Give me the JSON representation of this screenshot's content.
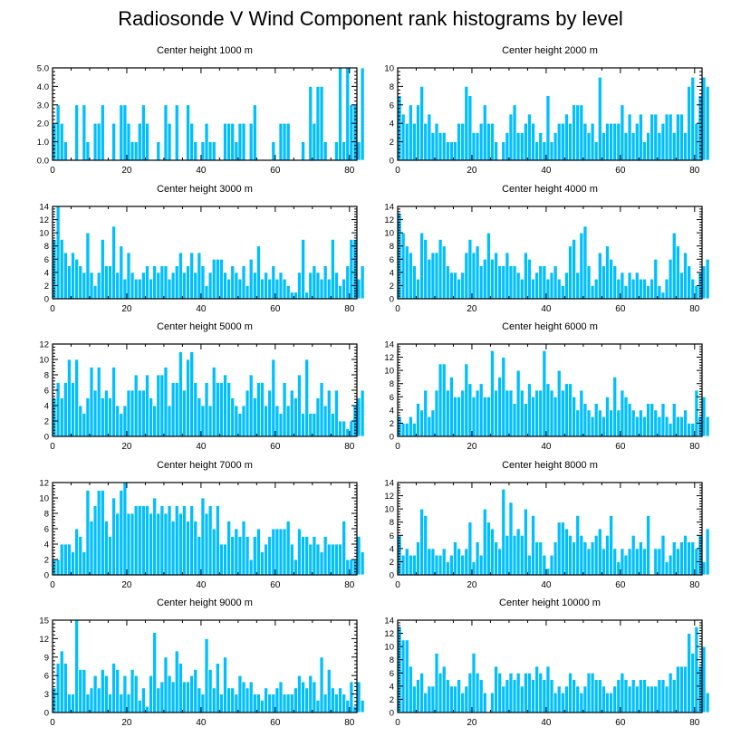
{
  "title": "Radiosonde V Wind Component rank histograms by level",
  "colors": {
    "bar": "#00BFFF",
    "bar_edge": "#ffffff",
    "axis": "#000000",
    "background": "#ffffff"
  },
  "chart_data": [
    {
      "type": "bar",
      "title": "Center height 1000 m",
      "xlim": [
        0,
        82
      ],
      "xticks": [
        0,
        20,
        40,
        60,
        80
      ],
      "ylim": [
        0,
        5
      ],
      "yticks": [
        0,
        1,
        2,
        3,
        4,
        5
      ],
      "ytick_labels": [
        "0.0",
        "1.0",
        "2.0",
        "3.0",
        "4.0",
        "5.0"
      ],
      "values": [
        2,
        3,
        2,
        1,
        0,
        0,
        3,
        0,
        3,
        1,
        0,
        2,
        2,
        3,
        0,
        0,
        2,
        0,
        3,
        3,
        2,
        1,
        1,
        2,
        3,
        2,
        0,
        0,
        1,
        0,
        3,
        2,
        0,
        3,
        0,
        0,
        3,
        2,
        1,
        0,
        1,
        2,
        1,
        1,
        0,
        0,
        2,
        2,
        2,
        1,
        2,
        2,
        0,
        2,
        3,
        0,
        0,
        0,
        0,
        1,
        0,
        2,
        2,
        2,
        0,
        0,
        0,
        1,
        0,
        4,
        2,
        4,
        4,
        1,
        0,
        0,
        1,
        5,
        1,
        5,
        3,
        3,
        1,
        5
      ]
    },
    {
      "type": "bar",
      "title": "Center height 2000 m",
      "xlim": [
        0,
        82
      ],
      "xticks": [
        0,
        20,
        40,
        60,
        80
      ],
      "ylim": [
        0,
        10
      ],
      "yticks": [
        0,
        2,
        4,
        6,
        8,
        10
      ],
      "ytick_labels": [
        "0",
        "2",
        "4",
        "6",
        "8",
        "10"
      ],
      "values": [
        7,
        5,
        4,
        6,
        4,
        6,
        8,
        4,
        5,
        3,
        4,
        3,
        3,
        2,
        2,
        2,
        4,
        4,
        8,
        7,
        3,
        3,
        4,
        6,
        4,
        4,
        2,
        0,
        2,
        3,
        5,
        6,
        3,
        3,
        4,
        5,
        4,
        2,
        3,
        2,
        7,
        2,
        3,
        4,
        4,
        5,
        4,
        6,
        6,
        6,
        4,
        3,
        4,
        2,
        9,
        3,
        4,
        4,
        4,
        4,
        6,
        3,
        5,
        3,
        4,
        5,
        2,
        3,
        5,
        5,
        3,
        4,
        5,
        5,
        3,
        5,
        5,
        3,
        8,
        9,
        4,
        7,
        9,
        8
      ]
    },
    {
      "type": "bar",
      "title": "Center height 3000 m",
      "xlim": [
        0,
        82
      ],
      "xticks": [
        0,
        20,
        40,
        60,
        80
      ],
      "ylim": [
        0,
        14
      ],
      "yticks": [
        0,
        2,
        4,
        6,
        8,
        10,
        12,
        14
      ],
      "ytick_labels": [
        "0",
        "2",
        "4",
        "6",
        "8",
        "10",
        "12",
        "14"
      ],
      "values": [
        9,
        14,
        9,
        7,
        5,
        7,
        6,
        5,
        4,
        10,
        4,
        2,
        4,
        9,
        5,
        5,
        11,
        4,
        8,
        3,
        7,
        4,
        3,
        3,
        4,
        5,
        3,
        5,
        4,
        5,
        5,
        3,
        4,
        5,
        7,
        4,
        5,
        7,
        4,
        7,
        5,
        2,
        4,
        6,
        6,
        6,
        4,
        3,
        5,
        4,
        3,
        5,
        2,
        6,
        4,
        8,
        3,
        4,
        3,
        5,
        3,
        4,
        3,
        2,
        1,
        1,
        4,
        9,
        1,
        4,
        5,
        4,
        3,
        5,
        3,
        9,
        4,
        2,
        3,
        5,
        9,
        9,
        3,
        5
      ]
    },
    {
      "type": "bar",
      "title": "Center height 4000 m",
      "xlim": [
        0,
        82
      ],
      "xticks": [
        0,
        20,
        40,
        60,
        80
      ],
      "ylim": [
        0,
        14
      ],
      "yticks": [
        0,
        2,
        4,
        6,
        8,
        10,
        12,
        14
      ],
      "ytick_labels": [
        "0",
        "2",
        "4",
        "6",
        "8",
        "10",
        "12",
        "14"
      ],
      "values": [
        13,
        10,
        8,
        7,
        5,
        3,
        10,
        9,
        6,
        7,
        7,
        9,
        8,
        5,
        4,
        4,
        3,
        4,
        7,
        9,
        7,
        8,
        5,
        6,
        10,
        6,
        7,
        5,
        5,
        7,
        5,
        5,
        4,
        3,
        7,
        6,
        3,
        4,
        5,
        5,
        3,
        4,
        5,
        3,
        2,
        4,
        8,
        9,
        4,
        10,
        11,
        5,
        2,
        3,
        7,
        5,
        8,
        6,
        5,
        3,
        4,
        2,
        4,
        3,
        4,
        3,
        3,
        2,
        3,
        6,
        2,
        1,
        3,
        6,
        10,
        8,
        4,
        7,
        5,
        3,
        2,
        4,
        5,
        6
      ]
    },
    {
      "type": "bar",
      "title": "Center height 5000 m",
      "xlim": [
        0,
        82
      ],
      "xticks": [
        0,
        20,
        40,
        60,
        80
      ],
      "ylim": [
        0,
        12
      ],
      "yticks": [
        0,
        2,
        4,
        6,
        8,
        10,
        12
      ],
      "ytick_labels": [
        "0",
        "2",
        "4",
        "6",
        "8",
        "10",
        "12"
      ],
      "values": [
        5,
        7,
        5,
        7,
        10,
        7,
        10,
        4,
        3,
        5,
        9,
        6,
        9,
        5,
        6,
        5,
        9,
        4,
        3,
        4,
        6,
        6,
        8,
        6,
        6,
        8,
        5,
        4,
        8,
        8,
        9,
        4,
        7,
        7,
        11,
        6,
        10,
        11,
        7,
        5,
        4,
        7,
        4,
        9,
        7,
        7,
        8,
        7,
        5,
        4,
        3,
        4,
        6,
        8,
        5,
        7,
        7,
        4,
        6,
        10,
        4,
        3,
        7,
        4,
        6,
        5,
        8,
        3,
        10,
        3,
        3,
        5,
        7,
        4,
        6,
        3,
        6,
        2,
        2,
        1,
        2,
        4,
        5,
        6
      ]
    },
    {
      "type": "bar",
      "title": "Center height 6000 m",
      "xlim": [
        0,
        82
      ],
      "xticks": [
        0,
        20,
        40,
        60,
        80
      ],
      "ylim": [
        0,
        14
      ],
      "yticks": [
        0,
        2,
        4,
        6,
        8,
        10,
        12,
        14
      ],
      "ytick_labels": [
        "0",
        "2",
        "4",
        "6",
        "8",
        "10",
        "12",
        "14"
      ],
      "values": [
        3,
        2,
        2,
        3,
        2,
        5,
        4,
        7,
        3,
        4,
        7,
        11,
        11,
        7,
        9,
        6,
        6,
        7,
        11,
        8,
        6,
        7,
        8,
        6,
        6,
        13,
        7,
        9,
        12,
        7,
        7,
        5,
        10,
        7,
        5,
        8,
        6,
        7,
        7,
        13,
        8,
        7,
        6,
        10,
        7,
        8,
        8,
        6,
        4,
        7,
        5,
        4,
        3,
        5,
        4,
        3,
        6,
        4,
        9,
        4,
        7,
        6,
        5,
        4,
        3,
        4,
        3,
        5,
        5,
        4,
        3,
        5,
        3,
        2,
        5,
        3,
        3,
        4,
        2,
        2,
        7,
        3,
        6,
        3
      ]
    },
    {
      "type": "bar",
      "title": "Center height 7000 m",
      "xlim": [
        0,
        82
      ],
      "xticks": [
        0,
        20,
        40,
        60,
        80
      ],
      "ylim": [
        0,
        12
      ],
      "yticks": [
        0,
        2,
        4,
        6,
        8,
        10,
        12
      ],
      "ytick_labels": [
        "0",
        "2",
        "4",
        "6",
        "8",
        "10",
        "12"
      ],
      "values": [
        2,
        2,
        4,
        4,
        4,
        3,
        6,
        5,
        3,
        11,
        7,
        9,
        11,
        11,
        7,
        5,
        10,
        8,
        11,
        12,
        8,
        8,
        9,
        9,
        9,
        9,
        8,
        10,
        8,
        9,
        8,
        9,
        7,
        9,
        8,
        9,
        7,
        9,
        7,
        5,
        10,
        8,
        9,
        6,
        9,
        4,
        4,
        7,
        5,
        6,
        5,
        7,
        5,
        2,
        5,
        6,
        3,
        4,
        5,
        6,
        6,
        6,
        6,
        7,
        4,
        2,
        6,
        5,
        5,
        4,
        5,
        4,
        3,
        5,
        4,
        4,
        4,
        4,
        7,
        2,
        2,
        2,
        5,
        3
      ]
    },
    {
      "type": "bar",
      "title": "Center height 8000 m",
      "xlim": [
        0,
        82
      ],
      "xticks": [
        0,
        20,
        40,
        60,
        80
      ],
      "ylim": [
        0,
        14
      ],
      "yticks": [
        0,
        2,
        4,
        6,
        8,
        10,
        12,
        14
      ],
      "ytick_labels": [
        "0",
        "2",
        "4",
        "6",
        "8",
        "10",
        "12",
        "14"
      ],
      "values": [
        6,
        3,
        4,
        3,
        3,
        5,
        10,
        9,
        4,
        4,
        3,
        3,
        4,
        2,
        3,
        5,
        4,
        3,
        4,
        8,
        2,
        5,
        3,
        10,
        8,
        7,
        5,
        4,
        13,
        6,
        11,
        6,
        7,
        6,
        10,
        3,
        9,
        5,
        5,
        3,
        1,
        3,
        5,
        8,
        8,
        7,
        6,
        5,
        9,
        6,
        5,
        4,
        5,
        6,
        7,
        4,
        6,
        9,
        4,
        2,
        4,
        3,
        4,
        6,
        4,
        5,
        4,
        9,
        0,
        4,
        4,
        6,
        2,
        3,
        5,
        4,
        5,
        6,
        5,
        5,
        4,
        6,
        2,
        7
      ]
    },
    {
      "type": "bar",
      "title": "Center height 9000 m",
      "xlim": [
        0,
        82
      ],
      "xticks": [
        0,
        20,
        40,
        60,
        80
      ],
      "ylim": [
        0,
        15
      ],
      "yticks": [
        0,
        3,
        6,
        9,
        12,
        15
      ],
      "ytick_labels": [
        "0",
        "3",
        "6",
        "9",
        "12",
        "15"
      ],
      "values": [
        4,
        8,
        10,
        8,
        3,
        3,
        15,
        7,
        7,
        3,
        4,
        6,
        4,
        7,
        6,
        3,
        8,
        7,
        3,
        6,
        3,
        7,
        6,
        2,
        4,
        1,
        6,
        13,
        4,
        5,
        9,
        6,
        5,
        10,
        8,
        5,
        5,
        6,
        7,
        4,
        3,
        12,
        7,
        4,
        8,
        3,
        9,
        4,
        4,
        3,
        6,
        5,
        4,
        5,
        3,
        3,
        2,
        4,
        3,
        3,
        4,
        5,
        3,
        3,
        3,
        4,
        6,
        5,
        4,
        6,
        5,
        2,
        9,
        3,
        7,
        4,
        3,
        4,
        3,
        2,
        5,
        1,
        5,
        2
      ]
    },
    {
      "type": "bar",
      "title": "Center height 10000 m",
      "xlim": [
        0,
        82
      ],
      "xticks": [
        0,
        20,
        40,
        60,
        80
      ],
      "ylim": [
        0,
        14
      ],
      "yticks": [
        0,
        2,
        4,
        6,
        8,
        10,
        12,
        14
      ],
      "ytick_labels": [
        "0",
        "2",
        "4",
        "6",
        "8",
        "10",
        "12",
        "14"
      ],
      "values": [
        13,
        11,
        11,
        7,
        4,
        5,
        6,
        3,
        4,
        4,
        9,
        6,
        7,
        5,
        4,
        4,
        5,
        3,
        4,
        6,
        9,
        6,
        5,
        3,
        0,
        3,
        7,
        6,
        4,
        5,
        6,
        5,
        6,
        4,
        6,
        6,
        5,
        7,
        6,
        5,
        7,
        5,
        3,
        4,
        3,
        4,
        6,
        5,
        4,
        3,
        4,
        6,
        6,
        5,
        5,
        4,
        3,
        3,
        4,
        5,
        6,
        5,
        4,
        5,
        4,
        5,
        5,
        4,
        4,
        4,
        5,
        5,
        4,
        6,
        5,
        7,
        7,
        7,
        12,
        9,
        13,
        7,
        10,
        3
      ]
    }
  ]
}
